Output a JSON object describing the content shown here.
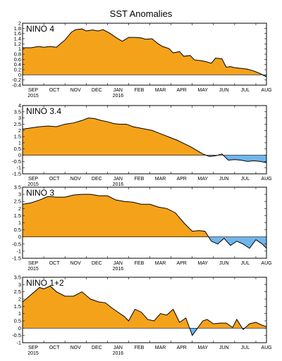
{
  "title": "SST Anomalies",
  "colors": {
    "positive": "#f5a21b",
    "negative": "#6fb6ec",
    "line": "#000000",
    "frame": "#000000"
  },
  "chart_data": [
    {
      "type": "area",
      "label": "NINO 4",
      "ylim": [
        -0.4,
        2.0
      ],
      "yticks": [
        "2",
        "1.8",
        "1.6",
        "1.4",
        "1.2",
        "1",
        "0.8",
        "0.6",
        "0.4",
        "0.2",
        "0",
        "-0.2",
        "-0.4"
      ],
      "x_months": [
        "SEP",
        "OCT",
        "NOV",
        "DEC",
        "JAN",
        "FEB",
        "MAR",
        "APR",
        "MAY",
        "JUN",
        "JUL",
        "AUG"
      ],
      "x_years": {
        "SEP": "2015",
        "JAN": "2016"
      },
      "x_range": [
        0,
        11.5
      ],
      "x": [
        0,
        0.4,
        0.75,
        1.0,
        1.3,
        1.6,
        1.85,
        2.0,
        2.3,
        2.5,
        2.8,
        3.0,
        3.3,
        3.55,
        3.8,
        4.1,
        4.4,
        4.7,
        5.0,
        5.3,
        5.6,
        5.8,
        6.1,
        6.4,
        6.6,
        6.9,
        7.1,
        7.4,
        7.6,
        7.9,
        8.1,
        8.4,
        8.6,
        8.9,
        9.1,
        9.4,
        9.6,
        9.8,
        10.0,
        10.3,
        10.6,
        10.9,
        11.2,
        11.5
      ],
      "values": [
        1.05,
        1.05,
        1.1,
        1.07,
        1.1,
        1.07,
        1.25,
        1.35,
        1.65,
        1.75,
        1.78,
        1.7,
        1.74,
        1.7,
        1.75,
        1.62,
        1.45,
        1.3,
        1.45,
        1.45,
        1.43,
        1.38,
        1.4,
        1.2,
        1.1,
        1.02,
        0.85,
        0.9,
        0.72,
        0.75,
        0.58,
        0.55,
        0.52,
        0.45,
        0.65,
        0.62,
        0.3,
        0.32,
        0.28,
        0.25,
        0.22,
        0.15,
        0.05,
        -0.08
      ]
    },
    {
      "type": "area",
      "label": "NINO 3.4",
      "ylim": [
        -1.5,
        4.0
      ],
      "yticks": [
        "4",
        "3.5",
        "3",
        "2.5",
        "2",
        "1.5",
        "1",
        "0.5",
        "0",
        "-0.5",
        "-1",
        "-1.5"
      ],
      "x_months": [
        "SEP",
        "OCT",
        "NOV",
        "DEC",
        "JAN",
        "FEB",
        "MAR",
        "APR",
        "MAY",
        "JUN",
        "JUL",
        "AUG"
      ],
      "x_years": {
        "SEP": "2015",
        "JAN": "2016"
      },
      "x_range": [
        0,
        11.5
      ],
      "x": [
        0,
        0.4,
        0.8,
        1.2,
        1.6,
        2.0,
        2.4,
        2.8,
        3.1,
        3.4,
        3.7,
        4.0,
        4.3,
        4.6,
        4.9,
        5.2,
        5.5,
        5.8,
        6.1,
        6.4,
        6.7,
        7.0,
        7.3,
        7.6,
        7.9,
        8.2,
        8.5,
        8.8,
        9.1,
        9.4,
        9.7,
        10.0,
        10.3,
        10.6,
        10.9,
        11.2,
        11.5
      ],
      "values": [
        2.1,
        2.2,
        2.3,
        2.35,
        2.3,
        2.5,
        2.6,
        2.8,
        3.0,
        2.95,
        2.8,
        2.7,
        2.55,
        2.5,
        2.5,
        2.3,
        2.2,
        2.1,
        2.0,
        1.8,
        1.6,
        1.4,
        1.2,
        0.95,
        0.7,
        0.4,
        0.1,
        -0.1,
        -0.05,
        0.1,
        -0.4,
        -0.35,
        -0.4,
        -0.5,
        -0.45,
        -0.5,
        -0.6
      ]
    },
    {
      "type": "area",
      "label": "NINO 3",
      "ylim": [
        -1.5,
        3.5
      ],
      "yticks": [
        "3.5",
        "3",
        "2.5",
        "2",
        "1.5",
        "1",
        "0.5",
        "0",
        "-0.5",
        "-1",
        "-1.5"
      ],
      "x_months": [
        "SEP",
        "OCT",
        "NOV",
        "DEC",
        "JAN",
        "FEB",
        "MAR",
        "APR",
        "MAY",
        "JUN",
        "JUL",
        "AUG"
      ],
      "x_years": {
        "SEP": "2015",
        "JAN": "2016"
      },
      "x_range": [
        0,
        11.5
      ],
      "x": [
        0,
        0.4,
        0.8,
        1.2,
        1.6,
        2.0,
        2.4,
        2.8,
        3.2,
        3.6,
        4.0,
        4.4,
        4.8,
        5.2,
        5.6,
        6.0,
        6.4,
        6.8,
        7.2,
        7.6,
        8.0,
        8.3,
        8.6,
        8.9,
        9.2,
        9.5,
        9.8,
        10.1,
        10.4,
        10.7,
        11.0,
        11.3,
        11.5
      ],
      "values": [
        2.3,
        2.4,
        2.6,
        2.85,
        2.8,
        2.8,
        2.95,
        3.0,
        3.0,
        2.9,
        2.9,
        2.6,
        2.5,
        2.45,
        2.3,
        2.3,
        2.1,
        2.0,
        1.7,
        1.0,
        0.4,
        0.45,
        0.4,
        -0.3,
        -0.5,
        -0.1,
        -0.6,
        -0.3,
        -0.5,
        -0.8,
        -0.2,
        -0.5,
        -0.8
      ]
    },
    {
      "type": "area",
      "label": "NINO 1+2",
      "ylim": [
        -1.0,
        3.5
      ],
      "yticks": [
        "3.5",
        "3",
        "2.5",
        "2",
        "1.5",
        "1",
        "0.5",
        "0",
        "-0.5",
        "-1"
      ],
      "x_months": [
        "SEP",
        "OCT",
        "NOV",
        "DEC",
        "JAN",
        "FEB",
        "MAR",
        "APR",
        "MAY",
        "JUN",
        "JUL",
        "AUG"
      ],
      "x_years": {
        "SEP": "2015",
        "JAN": "2016"
      },
      "x_range": [
        0,
        11.5
      ],
      "x": [
        0,
        0.4,
        0.8,
        1.0,
        1.3,
        1.6,
        2.0,
        2.4,
        2.8,
        3.2,
        3.6,
        3.9,
        4.2,
        4.5,
        4.8,
        5.0,
        5.3,
        5.6,
        5.9,
        6.2,
        6.5,
        6.8,
        7.1,
        7.4,
        7.7,
        8.0,
        8.2,
        8.5,
        8.7,
        9.0,
        9.3,
        9.6,
        9.9,
        10.1,
        10.4,
        10.7,
        11.0,
        11.3,
        11.5
      ],
      "values": [
        1.8,
        2.3,
        2.8,
        2.7,
        2.9,
        2.5,
        2.2,
        2.2,
        2.5,
        2.0,
        1.8,
        1.75,
        1.4,
        1.1,
        0.8,
        0.5,
        1.3,
        1.1,
        0.6,
        0.5,
        1.0,
        0.9,
        1.3,
        0.4,
        0.7,
        -0.5,
        -0.1,
        0.5,
        0.6,
        0.3,
        0.35,
        0.35,
        0.05,
        0.6,
        -0.1,
        0.3,
        0.4,
        0.2,
        0.1
      ]
    }
  ]
}
